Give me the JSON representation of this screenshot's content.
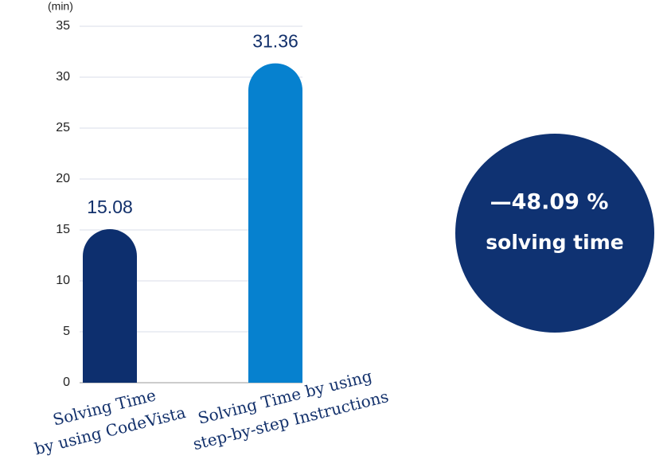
{
  "chart_data": {
    "type": "bar",
    "y_unit": "(min)",
    "categories": [
      [
        "Solving Time",
        "by using CodeVista"
      ],
      [
        "Solving Time by using",
        "step-by-step Instructions"
      ]
    ],
    "values": [
      15.08,
      31.36
    ],
    "colors": [
      "#0d2f6e",
      "#0681cf"
    ],
    "ylim": [
      0,
      35
    ],
    "yticks": [
      0,
      5,
      10,
      15,
      20,
      25,
      30,
      35
    ],
    "grid": true,
    "annotation": [
      "—48.09 %",
      "solving time"
    ]
  }
}
